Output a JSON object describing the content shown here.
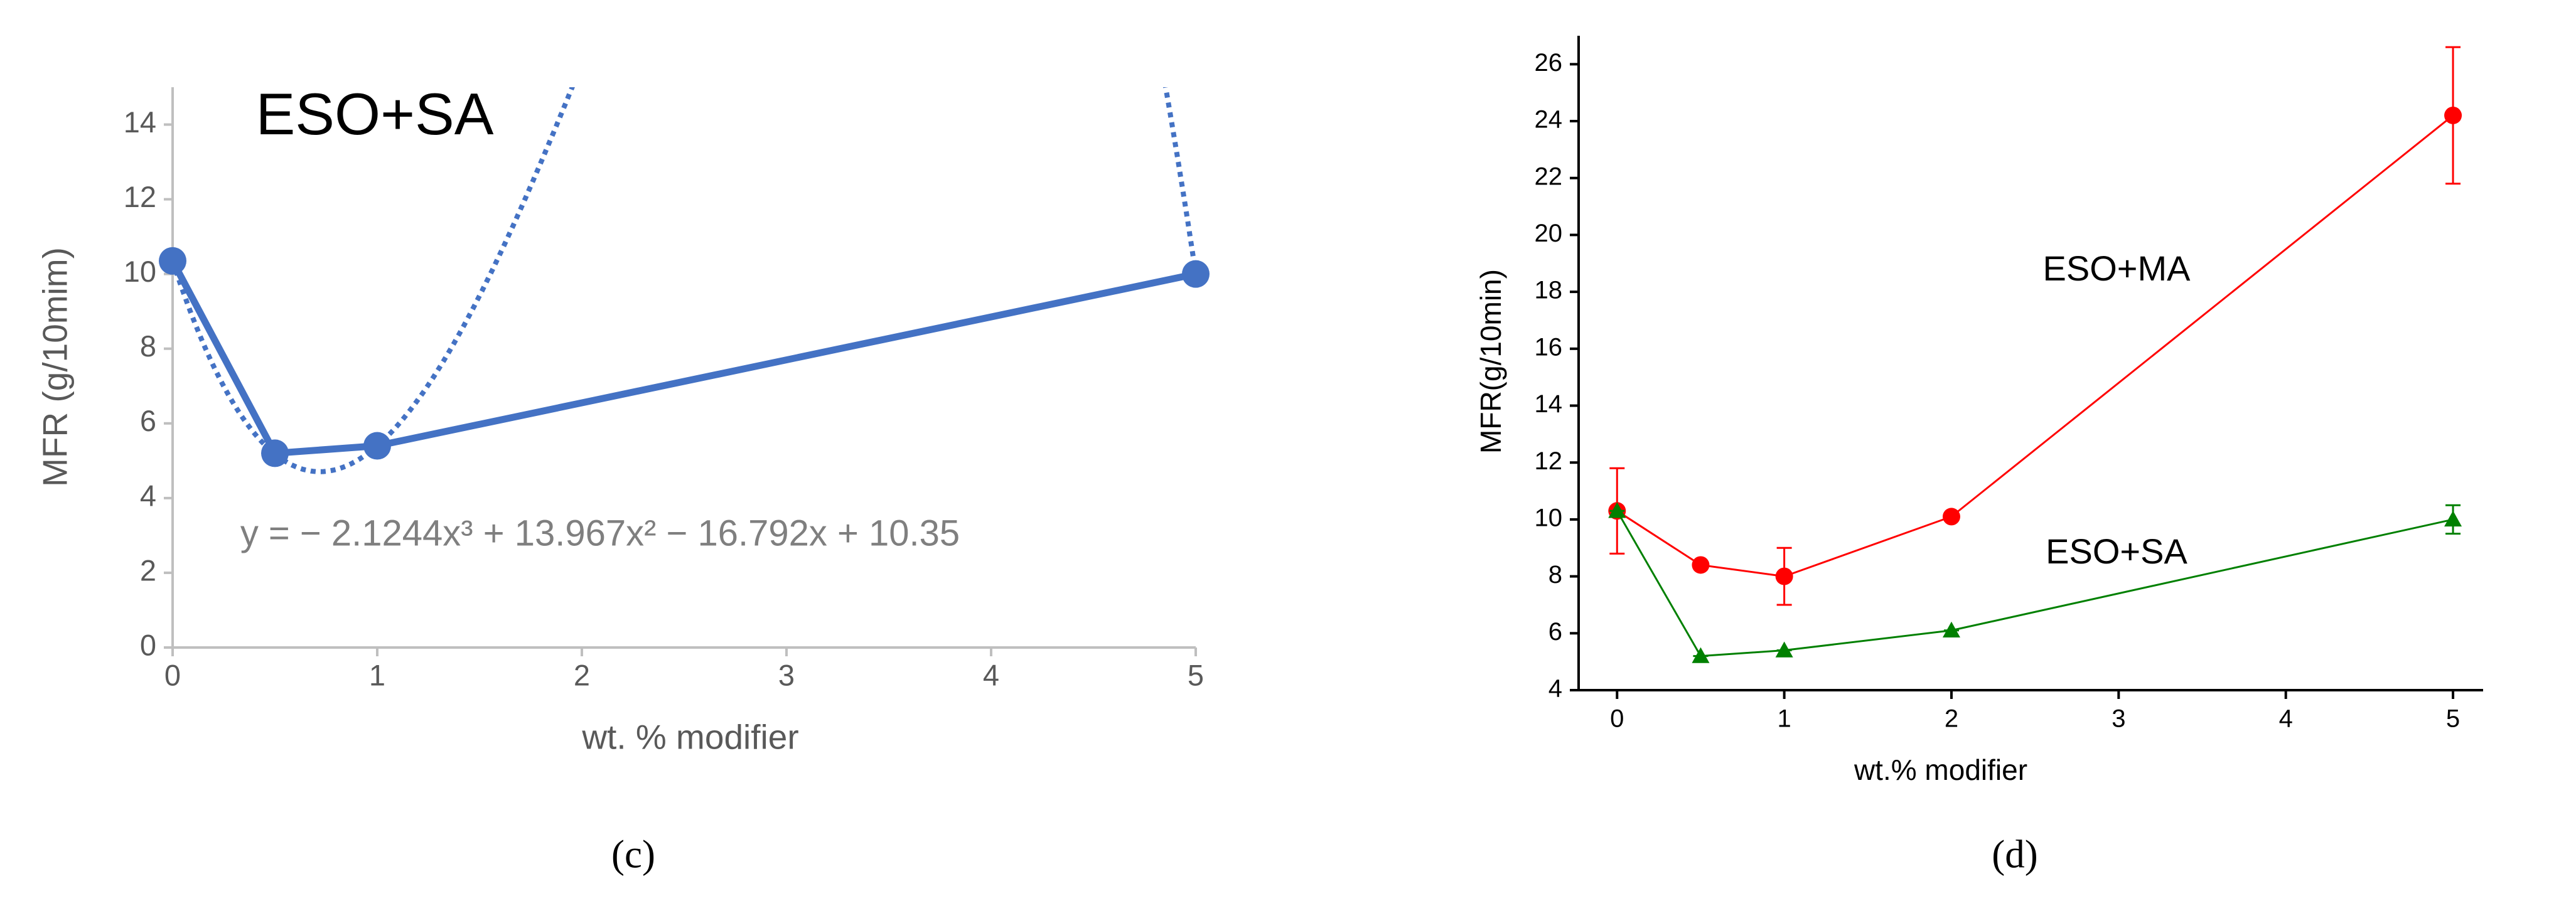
{
  "chart_data": [
    {
      "type": "line",
      "title": "ESO+SA",
      "panel_label": "(c)",
      "x_label": "wt. % modifier",
      "y_label": "MFR (g/10mim)",
      "x": [
        0,
        0.5,
        1,
        5
      ],
      "series": [
        {
          "color": "#4472c4",
          "marker": "circle",
          "values": [
            10.35,
            5.2,
            5.4,
            10.0
          ]
        }
      ],
      "trendline": {
        "equation": "y = − 2.1244x³ + 13.967x² − 16.792x + 10.35",
        "coefficients": [
          -2.1244,
          13.967,
          -16.792,
          10.35
        ],
        "color": "#4472c4",
        "style": "dotted"
      },
      "xlim": [
        0,
        5
      ],
      "xticks": [
        0,
        1,
        2,
        3,
        4,
        5
      ],
      "ylim": [
        0,
        15
      ],
      "yticks": [
        0,
        2,
        4,
        6,
        8,
        10,
        12,
        14
      ],
      "grid": false
    },
    {
      "type": "line",
      "panel_label": "(d)",
      "x_label": "wt.% modifier",
      "y_label": "MFR(g/10min)",
      "x": [
        0,
        0.5,
        1,
        2,
        5
      ],
      "series": [
        {
          "name": "ESO+MA",
          "color": "#ff0000",
          "marker": "circle",
          "values": [
            10.3,
            8.4,
            8.0,
            10.1,
            24.2
          ],
          "errors": [
            1.5,
            0,
            1.0,
            0,
            2.4
          ]
        },
        {
          "name": "ESO+SA",
          "color": "#008000",
          "marker": "triangle",
          "values": [
            10.3,
            5.2,
            5.4,
            6.1,
            10.0
          ],
          "errors": [
            0,
            0,
            0,
            0,
            0.5
          ]
        }
      ],
      "xlim": [
        -0.23,
        5.18
      ],
      "xticks": [
        0,
        1,
        2,
        3,
        4,
        5
      ],
      "ylim": [
        4,
        27
      ],
      "yticks": [
        4,
        6,
        8,
        10,
        12,
        14,
        16,
        18,
        20,
        22,
        24,
        26
      ],
      "grid": false
    }
  ]
}
